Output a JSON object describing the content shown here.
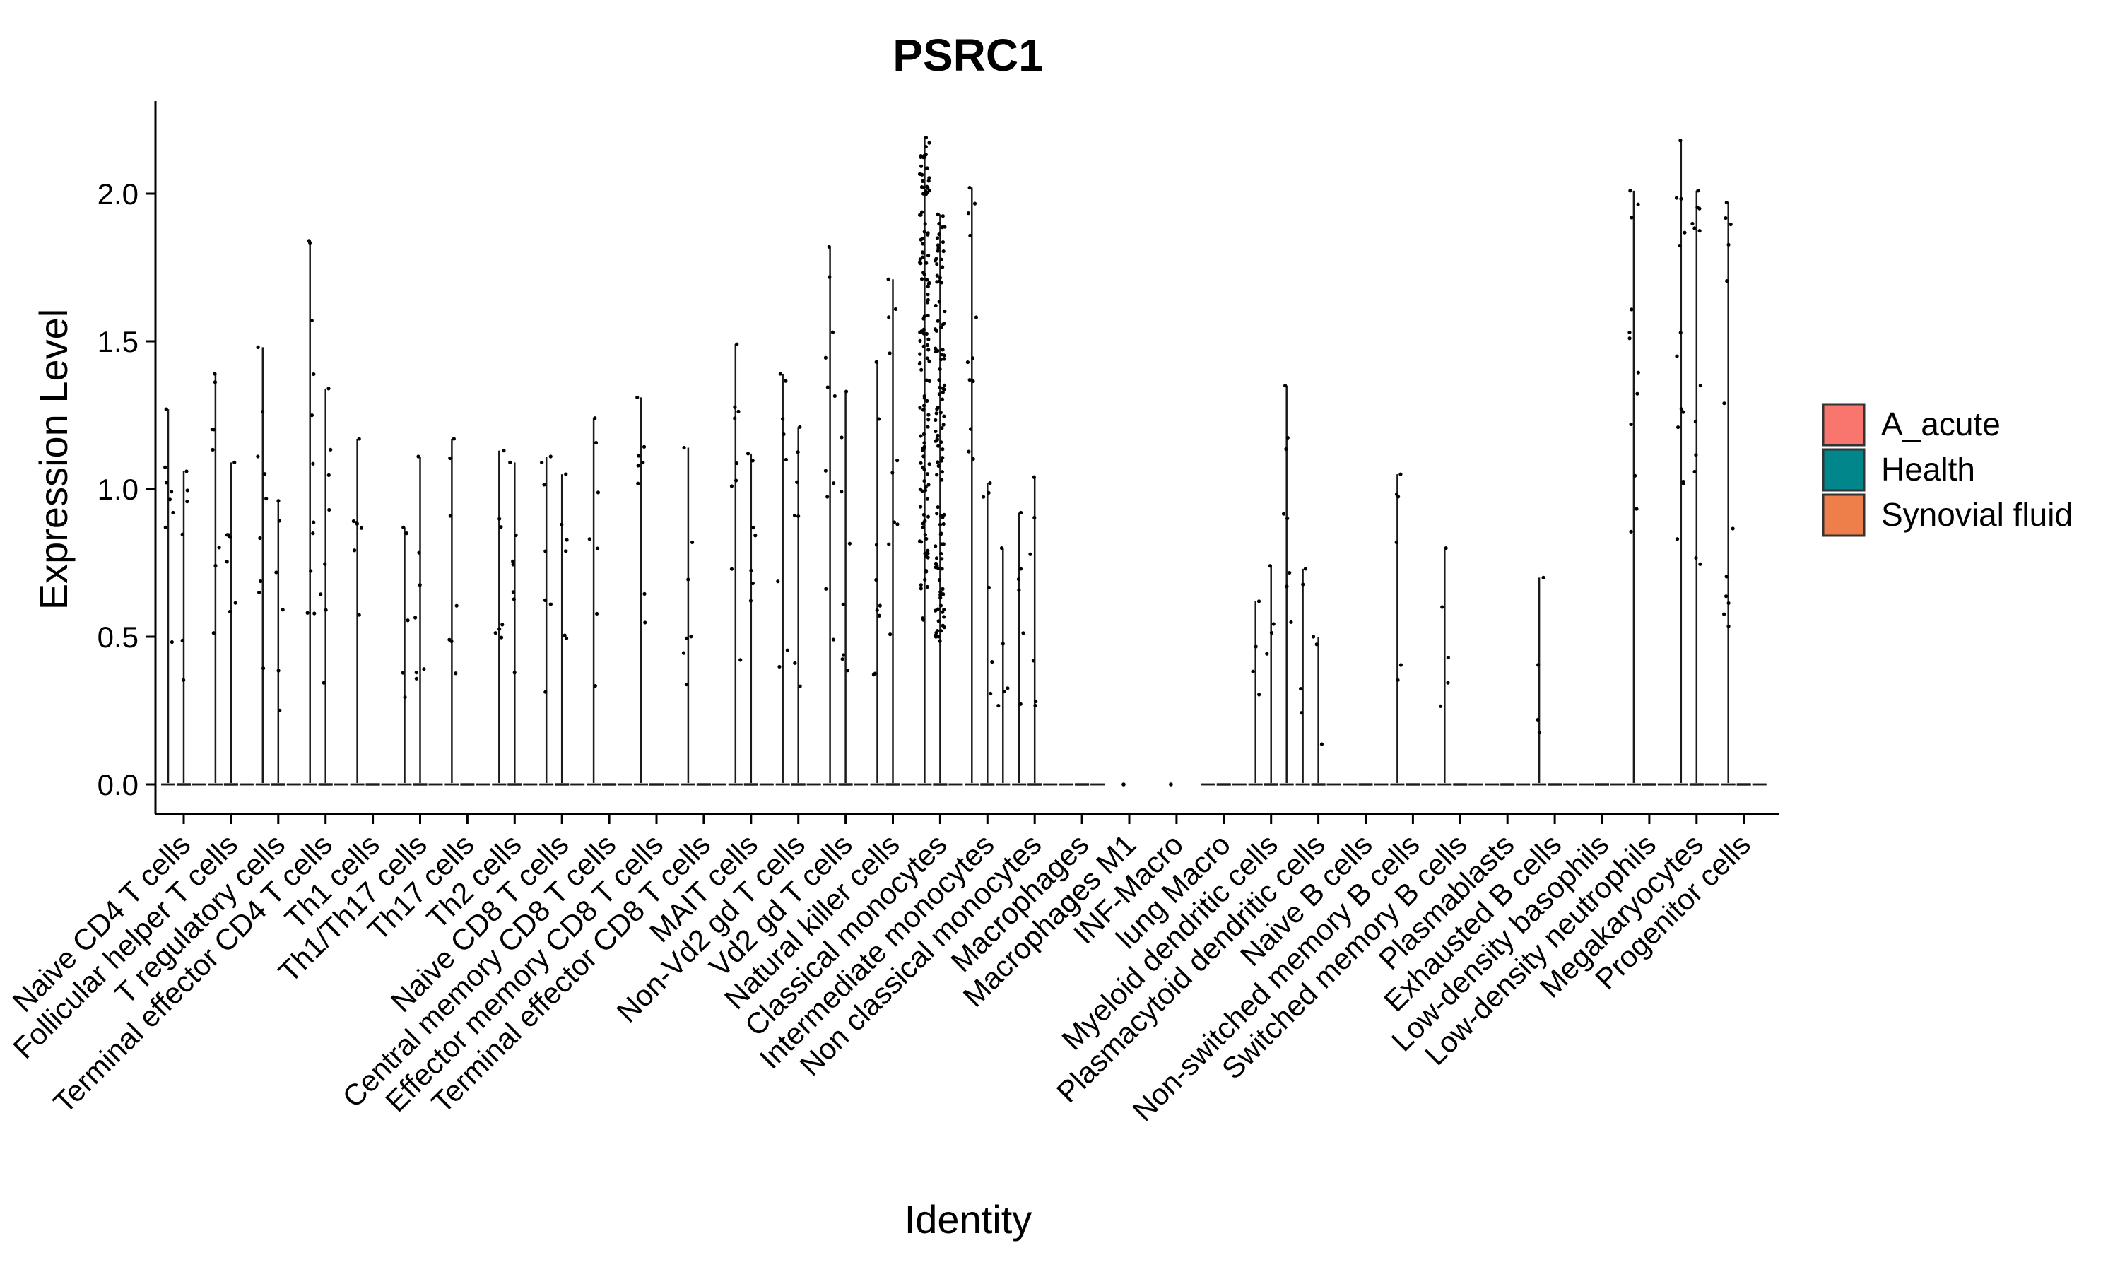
{
  "chart_data": {
    "type": "violin",
    "title": "PSRC1",
    "xlabel": "Identity",
    "ylabel": "Expression Level",
    "ylim": [
      -0.1,
      2.3
    ],
    "yticks": [
      "0.0",
      "0.5",
      "1.0",
      "1.5",
      "2.0"
    ],
    "ytick_values": [
      0,
      0.5,
      1.0,
      1.5,
      2.0
    ],
    "grid": false,
    "legend_position": "right",
    "legend": [
      {
        "name": "A_acute",
        "color": "#F8766D"
      },
      {
        "name": "Health",
        "color": "#00868B"
      },
      {
        "name": "Synovial fluid",
        "color": "#EE7E4A"
      }
    ],
    "categories": [
      {
        "label": "Naive CD4 T cells",
        "max": [
          1.27,
          1.06,
          0
        ]
      },
      {
        "label": "Follicular helper T cells",
        "max": [
          1.39,
          1.09,
          0
        ]
      },
      {
        "label": "T regulatory cells",
        "max": [
          1.48,
          0.96,
          0
        ]
      },
      {
        "label": "Terminal effector CD4 T cells",
        "max": [
          1.84,
          1.34,
          0
        ]
      },
      {
        "label": "Th1 cells",
        "max": [
          1.17,
          0,
          0
        ]
      },
      {
        "label": "Th1/Th17 cells",
        "max": [
          0.87,
          1.11,
          0
        ]
      },
      {
        "label": "Th17 cells",
        "max": [
          1.17,
          0,
          0
        ]
      },
      {
        "label": "Th2 cells",
        "max": [
          1.13,
          1.09,
          0
        ]
      },
      {
        "label": "Naive CD8 T cells",
        "max": [
          1.11,
          1.05,
          0
        ]
      },
      {
        "label": "Central memory CD8 T cells",
        "max": [
          1.24,
          0,
          0
        ]
      },
      {
        "label": "Effector memory CD8 T cells",
        "max": [
          1.31,
          0,
          0
        ]
      },
      {
        "label": "Terminal effector CD8 T cells",
        "max": [
          1.14,
          0,
          0
        ]
      },
      {
        "label": "MAIT cells",
        "max": [
          1.49,
          1.12,
          0
        ]
      },
      {
        "label": "Non-Vd2 gd T cells",
        "max": [
          1.39,
          1.21,
          0
        ]
      },
      {
        "label": "Vd2 gd T cells",
        "max": [
          1.82,
          1.33,
          0
        ]
      },
      {
        "label": "Natural killer cells",
        "max": [
          1.43,
          1.71,
          0
        ]
      },
      {
        "label": "Classical monocytes",
        "max": [
          2.19,
          1.93,
          0
        ]
      },
      {
        "label": "Intermediate monocytes",
        "max": [
          2.02,
          1.02,
          0.8
        ]
      },
      {
        "label": "Non classical monocytes",
        "max": [
          0.92,
          1.04,
          0
        ]
      },
      {
        "label": "Macrophages",
        "max": [
          0,
          0,
          0
        ]
      },
      {
        "label": "Macrophages M1",
        "max": [
          0,
          0,
          0
        ]
      },
      {
        "label": "INF-Macro",
        "max": [
          0,
          0,
          0
        ]
      },
      {
        "label": "lung Macro",
        "max": [
          0,
          0,
          0
        ]
      },
      {
        "label": "Myeloid dendritic cells",
        "max": [
          0.62,
          0.74,
          1.35
        ]
      },
      {
        "label": "Plasmacytoid dendritic cells",
        "max": [
          0.73,
          0.5,
          0
        ]
      },
      {
        "label": "Naive B cells",
        "max": [
          0,
          0,
          0
        ]
      },
      {
        "label": "Non-switched memory B cells",
        "max": [
          1.05,
          0,
          0
        ]
      },
      {
        "label": "Switched memory B cells",
        "max": [
          0.8,
          0,
          0
        ]
      },
      {
        "label": "Plasmablasts",
        "max": [
          0,
          0,
          0
        ]
      },
      {
        "label": "Exhausted B cells",
        "max": [
          0.7,
          0,
          0
        ]
      },
      {
        "label": "Low-density basophils",
        "max": [
          0,
          0,
          0
        ]
      },
      {
        "label": "Low-density neutrophils",
        "max": [
          2.01,
          0,
          0
        ]
      },
      {
        "label": "Megakaryocytes",
        "max": [
          2.18,
          2.01,
          0
        ]
      },
      {
        "label": "Progenitor cells",
        "max": [
          1.97,
          0,
          0
        ]
      }
    ]
  }
}
